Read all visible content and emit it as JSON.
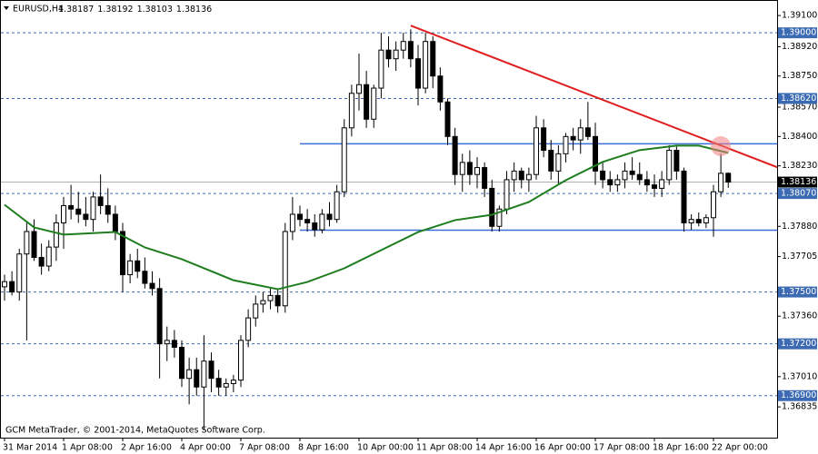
{
  "chart_data": {
    "type": "candlestick",
    "symbol": "EURUSD,H4",
    "footer": "GCM MetaTrader, © 2001-2014, MetaQuotes Software Corp.",
    "x_labels": [
      "31 Mar 2014",
      "1 Apr 08:00",
      "2 Apr 16:00",
      "4 Apr 00:00",
      "7 Apr 08:00",
      "8 Apr 16:00",
      "10 Apr 00:00",
      "11 Apr 08:00",
      "14 Apr 16:00",
      "16 Apr 00:00",
      "17 Apr 08:00",
      "18 Apr 16:00",
      "22 Apr 00:00"
    ],
    "ohlc": [
      [
        1.3753,
        1.376,
        1.3745,
        1.3756
      ],
      [
        1.3756,
        1.3762,
        1.3748,
        1.375
      ],
      [
        1.375,
        1.3775,
        1.3745,
        1.3772
      ],
      [
        1.3772,
        1.379,
        1.3722,
        1.3785
      ],
      [
        1.3785,
        1.3792,
        1.3768,
        1.377
      ],
      [
        1.377,
        1.3778,
        1.376,
        1.3765
      ],
      [
        1.3765,
        1.378,
        1.3762,
        1.3776
      ],
      [
        1.3776,
        1.3795,
        1.3768,
        1.379
      ],
      [
        1.379,
        1.3805,
        1.3775,
        1.38
      ],
      [
        1.38,
        1.3812,
        1.3792,
        1.3798
      ],
      [
        1.3798,
        1.3808,
        1.379,
        1.3795
      ],
      [
        1.3795,
        1.3805,
        1.3788,
        1.3792
      ],
      [
        1.3792,
        1.3808,
        1.3785,
        1.3805
      ],
      [
        1.3805,
        1.3818,
        1.3795,
        1.38
      ],
      [
        1.38,
        1.381,
        1.379,
        1.3795
      ],
      [
        1.3795,
        1.38,
        1.378,
        1.3785
      ],
      [
        1.3785,
        1.379,
        1.375,
        1.376
      ],
      [
        1.376,
        1.3772,
        1.3755,
        1.3768
      ],
      [
        1.3768,
        1.3775,
        1.3758,
        1.3762
      ],
      [
        1.3762,
        1.377,
        1.3752,
        1.3755
      ],
      [
        1.3755,
        1.3762,
        1.3748,
        1.3752
      ],
      [
        1.3752,
        1.3758,
        1.37,
        1.372
      ],
      [
        1.372,
        1.373,
        1.371,
        1.3722
      ],
      [
        1.3722,
        1.3728,
        1.3712,
        1.3718
      ],
      [
        1.3718,
        1.3722,
        1.3695,
        1.37
      ],
      [
        1.37,
        1.3712,
        1.3685,
        1.3705
      ],
      [
        1.3705,
        1.3712,
        1.369,
        1.3695
      ],
      [
        1.3695,
        1.3725,
        1.367,
        1.371
      ],
      [
        1.371,
        1.3715,
        1.3692,
        1.37
      ],
      [
        1.37,
        1.3705,
        1.369,
        1.3695
      ],
      [
        1.3695,
        1.37,
        1.369,
        1.3697
      ],
      [
        1.3697,
        1.3702,
        1.3692,
        1.3699
      ],
      [
        1.3699,
        1.3725,
        1.3695,
        1.3722
      ],
      [
        1.3722,
        1.374,
        1.3718,
        1.3735
      ],
      [
        1.3735,
        1.3748,
        1.373,
        1.3743
      ],
      [
        1.3743,
        1.375,
        1.3738,
        1.3745
      ],
      [
        1.3745,
        1.3752,
        1.374,
        1.3748
      ],
      [
        1.3748,
        1.3752,
        1.3738,
        1.3742
      ],
      [
        1.3742,
        1.379,
        1.3738,
        1.3785
      ],
      [
        1.3785,
        1.3805,
        1.378,
        1.3795
      ],
      [
        1.3795,
        1.38,
        1.3788,
        1.3792
      ],
      [
        1.3792,
        1.3798,
        1.3785,
        1.379
      ],
      [
        1.379,
        1.3795,
        1.3782,
        1.3786
      ],
      [
        1.3786,
        1.3798,
        1.3784,
        1.3795
      ],
      [
        1.3795,
        1.3802,
        1.3788,
        1.3792
      ],
      [
        1.3792,
        1.3812,
        1.379,
        1.3808
      ],
      [
        1.3808,
        1.385,
        1.3805,
        1.3845
      ],
      [
        1.3845,
        1.387,
        1.384,
        1.3865
      ],
      [
        1.3865,
        1.3888,
        1.3855,
        1.387
      ],
      [
        1.387,
        1.3878,
        1.3845,
        1.385
      ],
      [
        1.385,
        1.387,
        1.3845,
        1.3868
      ],
      [
        1.3868,
        1.39,
        1.3862,
        1.389
      ],
      [
        1.389,
        1.3898,
        1.388,
        1.3885
      ],
      [
        1.3885,
        1.3895,
        1.3878,
        1.389
      ],
      [
        1.389,
        1.39,
        1.3885,
        1.3895
      ],
      [
        1.3895,
        1.3902,
        1.388,
        1.3885
      ],
      [
        1.3885,
        1.3893,
        1.3858,
        1.3868
      ],
      [
        1.3868,
        1.39,
        1.3865,
        1.3895
      ],
      [
        1.3895,
        1.3898,
        1.3868,
        1.3875
      ],
      [
        1.3875,
        1.388,
        1.3855,
        1.386
      ],
      [
        1.386,
        1.3862,
        1.3835,
        1.384
      ],
      [
        1.384,
        1.3845,
        1.3812,
        1.3818
      ],
      [
        1.3818,
        1.383,
        1.3808,
        1.3825
      ],
      [
        1.3825,
        1.3832,
        1.3812,
        1.3818
      ],
      [
        1.3818,
        1.3828,
        1.381,
        1.3822
      ],
      [
        1.3822,
        1.3825,
        1.3805,
        1.381
      ],
      [
        1.381,
        1.3815,
        1.3785,
        1.3788
      ],
      [
        1.3788,
        1.38,
        1.3785,
        1.3798
      ],
      [
        1.3798,
        1.382,
        1.3795,
        1.3815
      ],
      [
        1.3815,
        1.3825,
        1.3808,
        1.382
      ],
      [
        1.382,
        1.3822,
        1.381,
        1.3815
      ],
      [
        1.3815,
        1.3822,
        1.3808,
        1.3818
      ],
      [
        1.3818,
        1.3852,
        1.3815,
        1.3845
      ],
      [
        1.3845,
        1.385,
        1.3828,
        1.3832
      ],
      [
        1.3832,
        1.3838,
        1.3815,
        1.382
      ],
      [
        1.382,
        1.3835,
        1.3812,
        1.383
      ],
      [
        1.383,
        1.3842,
        1.3825,
        1.384
      ],
      [
        1.384,
        1.3845,
        1.3832,
        1.3838
      ],
      [
        1.3838,
        1.385,
        1.383,
        1.3845
      ],
      [
        1.3845,
        1.386,
        1.3838,
        1.384
      ],
      [
        1.384,
        1.3848,
        1.3812,
        1.382
      ],
      [
        1.382,
        1.3825,
        1.381,
        1.3815
      ],
      [
        1.3815,
        1.382,
        1.3808,
        1.3812
      ],
      [
        1.3812,
        1.3818,
        1.3808,
        1.3815
      ],
      [
        1.3815,
        1.3825,
        1.381,
        1.382
      ],
      [
        1.382,
        1.3828,
        1.3815,
        1.3818
      ],
      [
        1.3818,
        1.3825,
        1.3812,
        1.3815
      ],
      [
        1.3815,
        1.382,
        1.3808,
        1.3812
      ],
      [
        1.3812,
        1.3818,
        1.3805,
        1.381
      ],
      [
        1.381,
        1.382,
        1.3805,
        1.3815
      ],
      [
        1.3815,
        1.3835,
        1.3812,
        1.3832
      ],
      [
        1.3832,
        1.3835,
        1.3815,
        1.382
      ],
      [
        1.382,
        1.3822,
        1.3785,
        1.379
      ],
      [
        1.379,
        1.3795,
        1.3786,
        1.3792
      ],
      [
        1.3792,
        1.3796,
        1.3788,
        1.379
      ],
      [
        1.379,
        1.3795,
        1.3787,
        1.3793
      ],
      [
        1.3793,
        1.3812,
        1.3782,
        1.3808
      ],
      [
        1.3808,
        1.383,
        1.3805,
        1.38187
      ],
      [
        1.38187,
        1.38192,
        1.38103,
        1.38136
      ]
    ],
    "bull_color": "#ffffff",
    "bear_color": "#000000",
    "moving_average": {
      "color": "#1e7d1e",
      "x": [
        0,
        4,
        8,
        15,
        19,
        24,
        31,
        37,
        41,
        46,
        51,
        56,
        61,
        66,
        71,
        76,
        81,
        86,
        91,
        94,
        98
      ],
      "values": [
        1.38005,
        1.37874,
        1.37832,
        1.37847,
        1.37758,
        1.3769,
        1.37568,
        1.37516,
        1.37558,
        1.37637,
        1.37742,
        1.37847,
        1.37916,
        1.37947,
        1.38021,
        1.38147,
        1.38253,
        1.38321,
        1.38347,
        1.38347,
        1.38305
      ]
    },
    "trendline": {
      "color": "#e02020",
      "x": [
        55,
        105
      ],
      "values": [
        1.39042,
        1.38216
      ]
    },
    "support_lines": {
      "color": "#3a6fd8",
      "x": [
        40,
        105
      ],
      "values": [
        1.38358,
        1.37858
      ]
    },
    "levels": [
      {
        "value": 1.39,
        "label": "1.39000"
      },
      {
        "value": 1.3862,
        "label": "1.38620"
      },
      {
        "value": 1.3807,
        "label": "1.38070"
      },
      {
        "value": 1.375,
        "label": "1.37500"
      },
      {
        "value": 1.372,
        "label": "1.37200"
      },
      {
        "value": 1.369,
        "label": "1.36900"
      }
    ],
    "level_color": "#3d6bb3",
    "ylim": [
      1.3672,
      1.3919
    ],
    "yticks": [
      {
        "value": 1.391,
        "label": "1.39100"
      },
      {
        "value": 1.3892,
        "label": "1.38920"
      },
      {
        "value": 1.3875,
        "label": "1.38750"
      },
      {
        "value": 1.3857,
        "label": "1.38570"
      },
      {
        "value": 1.384,
        "label": "1.38400"
      },
      {
        "value": 1.3823,
        "label": "1.38230"
      },
      {
        "value": 1.3788,
        "label": "1.37880"
      },
      {
        "value": 1.37705,
        "label": "1.37705"
      },
      {
        "value": 1.3736,
        "label": "1.37360"
      },
      {
        "value": 1.3701,
        "label": "1.37010"
      },
      {
        "value": 1.36835,
        "label": "1.36835"
      }
    ]
  }
}
